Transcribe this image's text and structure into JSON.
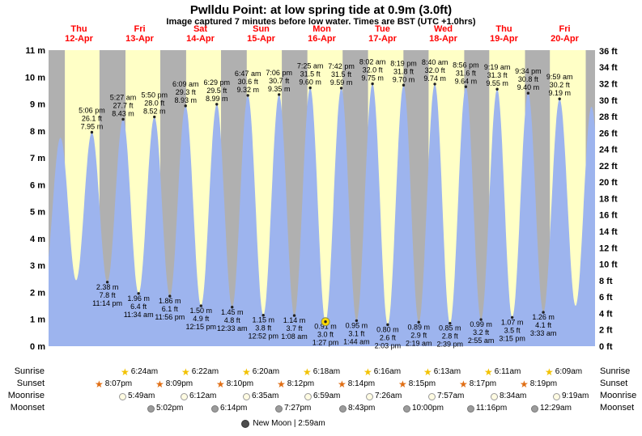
{
  "title": "Pwlldu Point: at low  spring tide at 0.9m (3.0ft)",
  "subtitle": "Image captured 7 minutes before low water. Times are BST (UTC +1.0hrs)",
  "colors": {
    "day_band": "#ffffc6",
    "night_band": "#b0b0b0",
    "tide_fill": "#9db4ee",
    "day_label_red": "#ff0000",
    "annotation_text": "#000000",
    "current_marker_yellow": "#ffd900"
  },
  "axes": {
    "left_unit": "m",
    "left_min": 0,
    "left_max": 11,
    "left_step": 1,
    "right_unit": "ft",
    "right_min": 0,
    "right_max": 36,
    "right_step": 2
  },
  "days": [
    {
      "name": "Thu",
      "date": "12-Apr"
    },
    {
      "name": "Fri",
      "date": "13-Apr"
    },
    {
      "name": "Sat",
      "date": "14-Apr"
    },
    {
      "name": "Sun",
      "date": "15-Apr"
    },
    {
      "name": "Mon",
      "date": "16-Apr"
    },
    {
      "name": "Tue",
      "date": "17-Apr"
    },
    {
      "name": "Wed",
      "date": "18-Apr"
    },
    {
      "name": "Thu",
      "date": "19-Apr"
    },
    {
      "name": "Fri",
      "date": "20-Apr"
    }
  ],
  "chart_data": {
    "type": "area",
    "title": "Pwlldu Point: at low  spring tide at 0.9m (3.0ft)",
    "x_range_hours": [
      0,
      216
    ],
    "y_left": {
      "unit": "m",
      "min": 0,
      "max": 11,
      "step": 1
    },
    "y_right": {
      "unit": "ft",
      "min": 0,
      "max": 36,
      "step": 2
    },
    "tide_events": [
      {
        "kind": "high",
        "day": 0,
        "time": "5:06 pm",
        "height_m": 7.95,
        "label_ft": "26.1 ft",
        "label_m": "7.95 m"
      },
      {
        "kind": "low",
        "day": 0,
        "time": "11:14 pm",
        "height_m": 2.38,
        "label_ft": "7.8 ft",
        "label_m": "2.38 m"
      },
      {
        "kind": "high",
        "day": 1,
        "time": "5:27 am",
        "height_m": 8.43,
        "label_ft": "27.7 ft",
        "label_m": "8.43 m"
      },
      {
        "kind": "low",
        "day": 1,
        "time": "11:34 am",
        "height_m": 1.96,
        "label_ft": "6.4 ft",
        "label_m": "1.96 m"
      },
      {
        "kind": "high",
        "day": 1,
        "time": "5:50 pm",
        "height_m": 8.52,
        "label_ft": "28.0 ft",
        "label_m": "8.52 m"
      },
      {
        "kind": "low",
        "day": 1,
        "time": "11:56 pm",
        "height_m": 1.86,
        "label_ft": "6.1 ft",
        "label_m": "1.86 m"
      },
      {
        "kind": "high",
        "day": 2,
        "time": "6:09 am",
        "height_m": 8.93,
        "label_ft": "29.3 ft",
        "label_m": "8.93 m"
      },
      {
        "kind": "low",
        "day": 2,
        "time": "12:15 pm",
        "height_m": 1.5,
        "label_ft": "4.9 ft",
        "label_m": "1.50 m"
      },
      {
        "kind": "high",
        "day": 2,
        "time": "6:29 pm",
        "height_m": 8.99,
        "label_ft": "29.5 ft",
        "label_m": "8.99 m"
      },
      {
        "kind": "low",
        "day": 3,
        "time": "12:33 am",
        "height_m": 1.45,
        "label_ft": "4.8 ft",
        "label_m": "1.45 m"
      },
      {
        "kind": "high",
        "day": 3,
        "time": "6:47 am",
        "height_m": 9.32,
        "label_ft": "30.6 ft",
        "label_m": "9.32 m"
      },
      {
        "kind": "low",
        "day": 3,
        "time": "12:52 pm",
        "height_m": 1.15,
        "label_ft": "3.8 ft",
        "label_m": "1.15 m"
      },
      {
        "kind": "high",
        "day": 3,
        "time": "7:06 pm",
        "height_m": 9.35,
        "label_ft": "30.7 ft",
        "label_m": "9.35 m"
      },
      {
        "kind": "low",
        "day": 4,
        "time": "1:08 am",
        "height_m": 1.14,
        "label_ft": "3.7 ft",
        "label_m": "1.14 m"
      },
      {
        "kind": "high",
        "day": 4,
        "time": "7:25 am",
        "height_m": 9.6,
        "label_ft": "31.5 ft",
        "label_m": "9.60 m"
      },
      {
        "kind": "low",
        "day": 4,
        "time": "1:27 pm",
        "height_m": 0.91,
        "label_ft": "3.0 ft",
        "label_m": "0.91 m",
        "current": true
      },
      {
        "kind": "high",
        "day": 4,
        "time": "7:42 pm",
        "height_m": 9.59,
        "label_ft": "31.5 ft",
        "label_m": "9.59 m"
      },
      {
        "kind": "low",
        "day": 5,
        "time": "1:44 am",
        "height_m": 0.95,
        "label_ft": "3.1 ft",
        "label_m": "0.95 m"
      },
      {
        "kind": "high",
        "day": 5,
        "time": "8:02 am",
        "height_m": 9.75,
        "label_ft": "32.0 ft",
        "label_m": "9.75 m"
      },
      {
        "kind": "low",
        "day": 5,
        "time": "2:03 pm",
        "height_m": 0.8,
        "label_ft": "2.6 ft",
        "label_m": "0.80 m"
      },
      {
        "kind": "high",
        "day": 5,
        "time": "8:19 pm",
        "height_m": 9.7,
        "label_ft": "31.8 ft",
        "label_m": "9.70 m"
      },
      {
        "kind": "low",
        "day": 6,
        "time": "2:19 am",
        "height_m": 0.89,
        "label_ft": "2.9 ft",
        "label_m": "0.89 m"
      },
      {
        "kind": "high",
        "day": 6,
        "time": "8:40 am",
        "height_m": 9.74,
        "label_ft": "32.0 ft",
        "label_m": "9.74 m"
      },
      {
        "kind": "low",
        "day": 6,
        "time": "2:39 pm",
        "height_m": 0.85,
        "label_ft": "2.8 ft",
        "label_m": "0.85 m"
      },
      {
        "kind": "high",
        "day": 6,
        "time": "8:56 pm",
        "height_m": 9.64,
        "label_ft": "31.6 ft",
        "label_m": "9.64 m"
      },
      {
        "kind": "low",
        "day": 7,
        "time": "2:55 am",
        "height_m": 0.99,
        "label_ft": "3.2 ft",
        "label_m": "0.99 m"
      },
      {
        "kind": "high",
        "day": 7,
        "time": "9:19 am",
        "height_m": 9.55,
        "label_ft": "31.3 ft",
        "label_m": "9.55 m"
      },
      {
        "kind": "low",
        "day": 7,
        "time": "3:15 pm",
        "height_m": 1.07,
        "label_ft": "3.5 ft",
        "label_m": "1.07 m"
      },
      {
        "kind": "high",
        "day": 7,
        "time": "9:34 pm",
        "height_m": 9.4,
        "label_ft": "30.8 ft",
        "label_m": "9.40 m"
      },
      {
        "kind": "low",
        "day": 8,
        "time": "3:33 am",
        "height_m": 1.26,
        "label_ft": "4.1 ft",
        "label_m": "1.26 m"
      },
      {
        "kind": "high",
        "day": 8,
        "time": "9:59 am",
        "height_m": 9.19,
        "label_ft": "30.2 ft",
        "label_m": "9.19 m"
      }
    ],
    "edge_points": [
      {
        "abs_hour": -1.6,
        "height_m": 2.5
      },
      {
        "abs_hour": 4.7,
        "height_m": 7.75
      },
      {
        "abs_hour": 10.9,
        "height_m": 2.45
      },
      {
        "abs_hour": 208.3,
        "height_m": 1.5
      },
      {
        "abs_hour": 214.6,
        "height_m": 8.9
      },
      {
        "abs_hour": 220.9,
        "height_m": 1.6
      }
    ],
    "night_band_edges": {
      "chart_start_h": 0,
      "first_sunrise_h": 6.43,
      "last_sunset_h": 212.33,
      "chart_end_h": 216
    }
  },
  "sun_moon": {
    "rows": [
      {
        "key": "sunrise",
        "label": "Sunrise",
        "icon": "sunrise-star",
        "entries": [
          {
            "day": 1,
            "time": "6:24am"
          },
          {
            "day": 2,
            "time": "6:22am"
          },
          {
            "day": 3,
            "time": "6:20am"
          },
          {
            "day": 4,
            "time": "6:18am"
          },
          {
            "day": 5,
            "time": "6:16am"
          },
          {
            "day": 6,
            "time": "6:13am"
          },
          {
            "day": 7,
            "time": "6:11am"
          },
          {
            "day": 8,
            "time": "6:09am"
          }
        ]
      },
      {
        "key": "sunset",
        "label": "Sunset",
        "icon": "sunset-star",
        "entries": [
          {
            "day": 0,
            "time": "8:07pm"
          },
          {
            "day": 1,
            "time": "8:09pm"
          },
          {
            "day": 2,
            "time": "8:10pm"
          },
          {
            "day": 3,
            "time": "8:12pm"
          },
          {
            "day": 4,
            "time": "8:14pm"
          },
          {
            "day": 5,
            "time": "8:15pm"
          },
          {
            "day": 6,
            "time": "8:17pm"
          },
          {
            "day": 7,
            "time": "8:19pm"
          }
        ]
      },
      {
        "key": "moonrise",
        "label": "Moonrise",
        "icon": "moonrise-circle",
        "entries": [
          {
            "day": 1,
            "time": "5:49am"
          },
          {
            "day": 2,
            "time": "6:12am"
          },
          {
            "day": 3,
            "time": "6:35am"
          },
          {
            "day": 4,
            "time": "6:59am"
          },
          {
            "day": 5,
            "time": "7:26am"
          },
          {
            "day": 6,
            "time": "7:57am"
          },
          {
            "day": 7,
            "time": "8:34am"
          },
          {
            "day": 8,
            "time": "9:19am"
          }
        ]
      },
      {
        "key": "moonset",
        "label": "Moonset",
        "icon": "moonset-circle",
        "entries": [
          {
            "day": 1,
            "time": "5:02pm"
          },
          {
            "day": 2,
            "time": "6:14pm"
          },
          {
            "day": 3,
            "time": "7:27pm"
          },
          {
            "day": 4,
            "time": "8:43pm"
          },
          {
            "day": 5,
            "time": "10:00pm"
          },
          {
            "day": 6,
            "time": "11:16pm"
          },
          {
            "day": 8,
            "time": "12:29am"
          }
        ]
      }
    ],
    "moon_phase": {
      "icon": "new-moon",
      "text": "New Moon | 2:59am"
    }
  }
}
